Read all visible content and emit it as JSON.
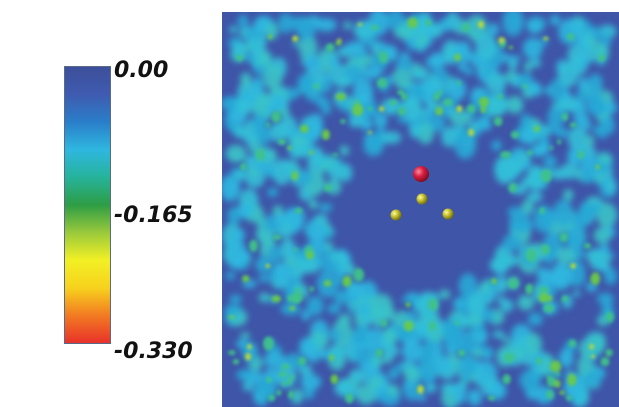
{
  "colorbar": {
    "ticks": [
      {
        "label": "0.00",
        "value": 0.0
      },
      {
        "label": "-0.165",
        "value": -0.165
      },
      {
        "label": "-0.330",
        "value": -0.33
      }
    ],
    "range": [
      -0.33,
      0.0
    ],
    "colors": [
      "#e8322a",
      "#f27a22",
      "#f7d21d",
      "#f2f025",
      "#9ac93c",
      "#2e9d45",
      "#26b39a",
      "#2fb7e0",
      "#2a7ec9",
      "#3f5bb0",
      "#3d4f9a"
    ]
  },
  "map": {
    "background_color": "#3f55a8",
    "spheres": [
      {
        "color": "#d81e40"
      },
      {
        "color": "#c6c12e"
      },
      {
        "color": "#c6c12e"
      },
      {
        "color": "#c6c12e"
      }
    ]
  }
}
